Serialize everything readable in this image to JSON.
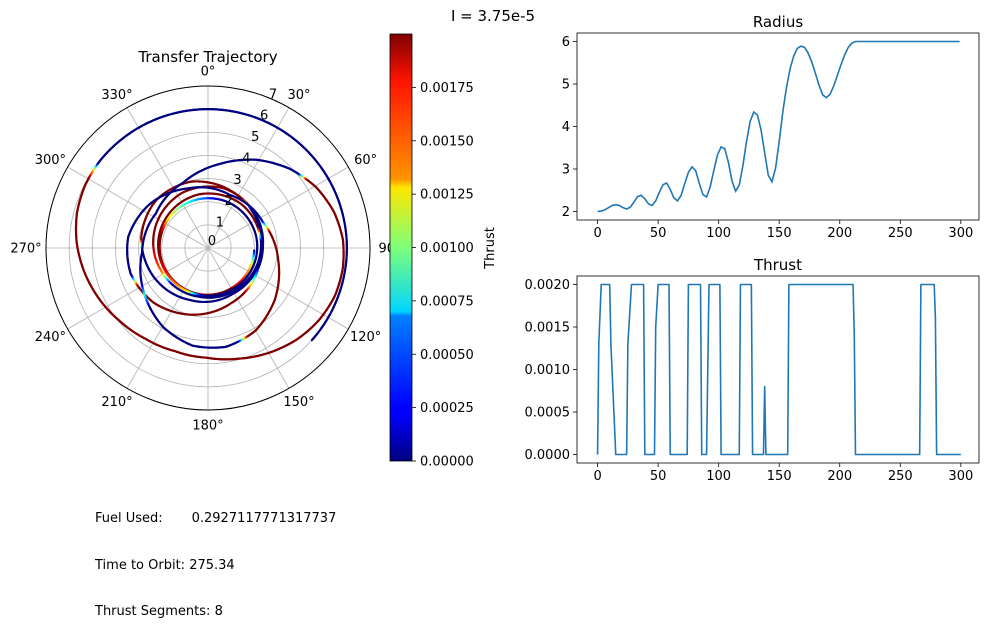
{
  "suptitle": "I = 3.75e-5",
  "stats": {
    "fuel_label": "Fuel Used:",
    "fuel_value": "0.2927117771317737",
    "time_label": "Time to Orbit:",
    "time_value": "275.34",
    "segments_label": "Thrust Segments:",
    "segments_value": "8"
  },
  "colors": {
    "line": "#1f77b4",
    "grid": "#b0b0b0",
    "axis": "#000000"
  },
  "chart_data": [
    {
      "type": "scatter",
      "subtype": "polar",
      "title": "Transfer Trajectory",
      "theta_tick_labels": [
        "0°",
        "30°",
        "60°",
        "90°",
        "120°",
        "150°",
        "180°",
        "210°",
        "240°",
        "270°",
        "300°",
        "330°"
      ],
      "theta_zero": "top",
      "theta_direction": "clockwise",
      "r_tick_labels": [
        "0",
        "1",
        "2",
        "3",
        "4",
        "5",
        "6",
        "7"
      ],
      "rlim": [
        0,
        7
      ],
      "grid": true,
      "colormap": "jet",
      "colorbar": {
        "label": "Thrust",
        "range": [
          0,
          0.002
        ],
        "tick_labels": [
          "0.00000",
          "0.00025",
          "0.00050",
          "0.00075",
          "0.00100",
          "0.00125",
          "0.00150",
          "0.00175"
        ]
      }
    },
    {
      "type": "line",
      "title": "Radius",
      "xlim": [
        -17,
        315
      ],
      "ylim": [
        1.8,
        6.2
      ],
      "x_ticks": [
        0,
        50,
        100,
        150,
        200,
        250,
        300
      ],
      "y_ticks": [
        2,
        3,
        4,
        5,
        6
      ],
      "y_tick_labels": [
        "2",
        "3",
        "4",
        "5",
        "6"
      ],
      "grid": false,
      "series": [
        {
          "x": [
            0,
            3,
            6,
            9,
            12,
            15,
            18,
            21,
            24,
            27,
            30,
            33,
            36,
            39,
            42,
            45,
            48,
            51,
            54,
            57,
            60,
            63,
            66,
            69,
            72,
            75,
            78,
            81,
            84,
            87,
            90,
            93,
            96,
            99,
            102,
            105,
            108,
            111,
            114,
            117,
            120,
            123,
            126,
            129,
            132,
            135,
            138,
            141,
            144,
            147,
            150,
            153,
            156,
            159,
            162,
            165,
            168,
            171,
            174,
            177,
            180,
            183,
            186,
            189,
            192,
            195,
            198,
            201,
            204,
            207,
            210,
            213,
            216,
            219,
            222,
            225,
            228,
            231,
            234,
            237,
            240,
            243,
            246,
            249,
            252,
            255,
            258,
            261,
            264,
            267,
            270,
            273,
            276,
            279,
            282,
            285,
            288,
            291,
            294,
            297,
            299
          ],
          "y": [
            2.0,
            2.01,
            2.04,
            2.09,
            2.14,
            2.16,
            2.14,
            2.09,
            2.06,
            2.1,
            2.22,
            2.35,
            2.38,
            2.3,
            2.18,
            2.14,
            2.25,
            2.45,
            2.63,
            2.67,
            2.52,
            2.32,
            2.25,
            2.38,
            2.66,
            2.92,
            3.05,
            2.96,
            2.66,
            2.4,
            2.34,
            2.58,
            2.97,
            3.33,
            3.52,
            3.48,
            3.16,
            2.72,
            2.48,
            2.62,
            3.08,
            3.65,
            4.12,
            4.34,
            4.27,
            3.92,
            3.38,
            2.85,
            2.7,
            3.02,
            3.65,
            4.35,
            4.92,
            5.36,
            5.66,
            5.84,
            5.89,
            5.86,
            5.72,
            5.51,
            5.24,
            4.96,
            4.74,
            4.68,
            4.76,
            4.95,
            5.2,
            5.45,
            5.68,
            5.86,
            5.96,
            6.0,
            6.0,
            6.0,
            6.0,
            6.0,
            6.0,
            6.0,
            6.0,
            6.0,
            6.0,
            6.0,
            6.0,
            6.0,
            6.0,
            6.0,
            6.0,
            6.0,
            6.0,
            6.0,
            6.0,
            6.0,
            6.0,
            6.0,
            6.0,
            6.0,
            6.0,
            6.0,
            6.0,
            6.0,
            6.0
          ]
        }
      ]
    },
    {
      "type": "line",
      "title": "Thrust",
      "xlim": [
        -17,
        315
      ],
      "ylim": [
        -0.0001,
        0.0021
      ],
      "x_ticks": [
        0,
        50,
        100,
        150,
        200,
        250,
        300
      ],
      "y_ticks": [
        0,
        0.0005,
        0.001,
        0.0015,
        0.002
      ],
      "y_tick_labels": [
        "0.0000",
        "0.0005",
        "0.0010",
        "0.0015",
        "0.0020"
      ],
      "grid": false,
      "series": [
        {
          "x": [
            0,
            1,
            3,
            10,
            11,
            15,
            16,
            24,
            25,
            28,
            29,
            38,
            39,
            46,
            47,
            48,
            50,
            59,
            60,
            67,
            68,
            74,
            75,
            85,
            86,
            90,
            92,
            101,
            102,
            104,
            105,
            117,
            118,
            119,
            120,
            127,
            128,
            137,
            138,
            139,
            140,
            157,
            158,
            211,
            212,
            213,
            214,
            222,
            223,
            266,
            267,
            278,
            279,
            280,
            281,
            284,
            285,
            300
          ],
          "y": [
            0.0,
            0.0013,
            0.002,
            0.002,
            0.0013,
            0.0,
            0.0,
            0.0,
            0.0013,
            0.002,
            0.002,
            0.002,
            0.0,
            0.0,
            0.0,
            0.0015,
            0.002,
            0.002,
            0.0,
            0.0,
            0.0,
            0.0,
            0.002,
            0.002,
            0.0,
            0.0,
            0.002,
            0.002,
            0.0,
            0.0,
            0.0,
            0.0,
            0.002,
            0.002,
            0.002,
            0.002,
            0.0,
            0.0,
            0.0008,
            0.0,
            0.0,
            0.0,
            0.002,
            0.002,
            0.0014,
            0.0,
            0.0,
            0.0,
            0.0,
            0.0,
            0.002,
            0.002,
            0.0016,
            0.0,
            0.0,
            0.0,
            0.0,
            0.0
          ]
        }
      ]
    }
  ]
}
